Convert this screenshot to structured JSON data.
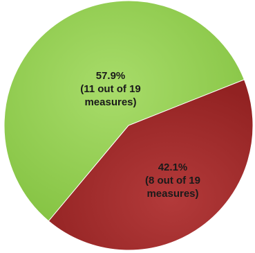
{
  "chart_data": {
    "type": "pie",
    "slices": [
      {
        "value": 57.9,
        "count": 11,
        "label_lines": [
          "57.9%",
          "(11 out of 19",
          "measures)"
        ],
        "color": "#92d050",
        "shadow_color": "#6fae2e"
      },
      {
        "value": 42.1,
        "count": 8,
        "label_lines": [
          "42.1%",
          "(8 out of 19",
          "measures)"
        ],
        "color": "#a52a2a",
        "shadow_color": "#7a1a1a"
      }
    ],
    "total": 19,
    "title": "",
    "legend": "none"
  }
}
